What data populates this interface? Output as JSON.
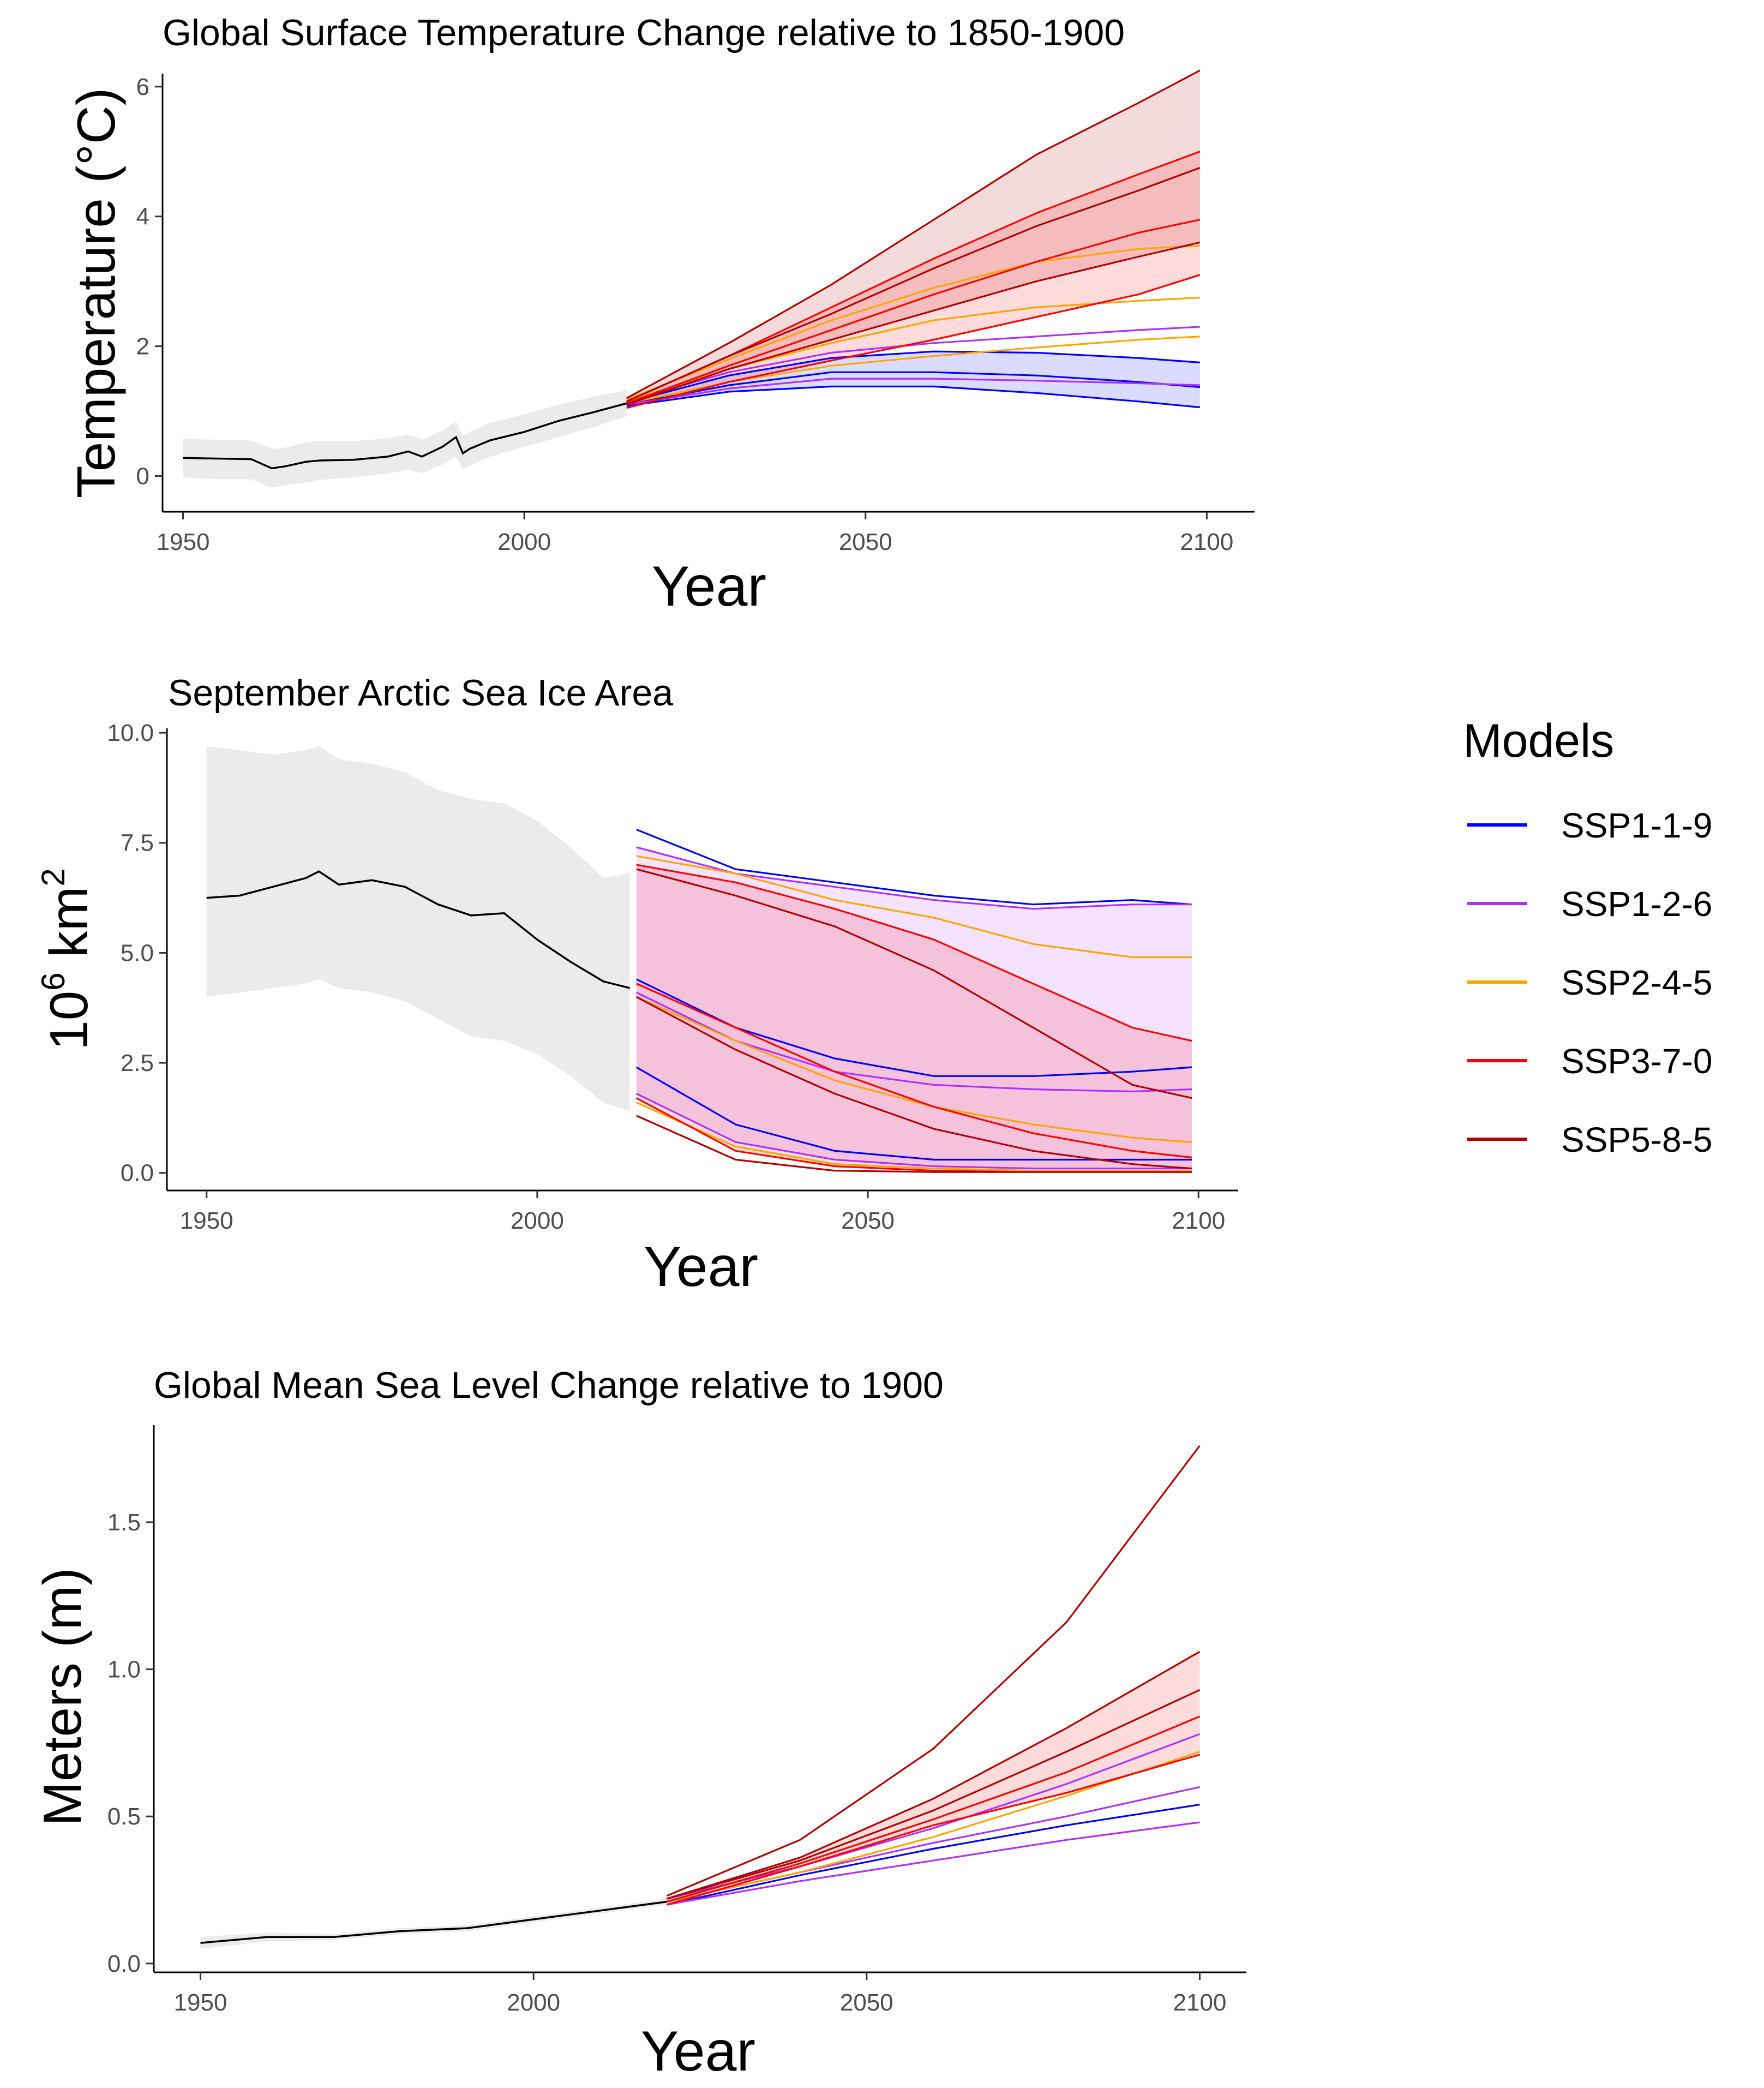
{
  "legend": {
    "title": "Models",
    "items": [
      {
        "label": "SSP1-1-9",
        "color": "#0000ff"
      },
      {
        "label": "SSP1-2-6",
        "color": "#b030ff"
      },
      {
        "label": "SSP2-4-5",
        "color": "#ffa500"
      },
      {
        "label": "SSP3-7-0",
        "color": "#ff0000"
      },
      {
        "label": "SSP5-8-5",
        "color": "#b00000"
      }
    ]
  },
  "chart_data": [
    {
      "type": "line",
      "title": "Global Surface Temperature Change relative to 1850-1900",
      "xlabel": "Year",
      "ylabel": "Temperature (°C)",
      "xlim": [
        1947,
        2107
      ],
      "ylim": [
        -0.55,
        6.2
      ],
      "xticks": [
        1950,
        2000,
        2050,
        2100
      ],
      "yticks": [
        0,
        2,
        4,
        6
      ],
      "historical": {
        "color": "#000000",
        "x": [
          1950,
          1955,
          1960,
          1963,
          1965,
          1968,
          1970,
          1975,
          1980,
          1983,
          1985,
          1988,
          1990,
          1991,
          1992,
          1995,
          2000,
          2005,
          2010,
          2015
        ],
        "y": [
          0.28,
          0.27,
          0.26,
          0.12,
          0.15,
          0.22,
          0.24,
          0.25,
          0.3,
          0.38,
          0.3,
          0.45,
          0.6,
          0.35,
          0.42,
          0.55,
          0.68,
          0.85,
          0.98,
          1.12
        ],
        "band_lower": [
          -0.02,
          -0.05,
          -0.05,
          -0.18,
          -0.14,
          -0.1,
          -0.06,
          -0.02,
          0.04,
          0.1,
          0.04,
          0.18,
          0.3,
          0.1,
          0.16,
          0.3,
          0.45,
          0.6,
          0.75,
          0.92
        ],
        "band_upper": [
          0.58,
          0.56,
          0.55,
          0.42,
          0.44,
          0.52,
          0.54,
          0.54,
          0.58,
          0.64,
          0.56,
          0.7,
          0.85,
          0.62,
          0.68,
          0.82,
          0.95,
          1.1,
          1.22,
          1.32
        ]
      },
      "projection_x": [
        2015,
        2030,
        2045,
        2060,
        2075,
        2090,
        2099
      ],
      "projections": [
        {
          "scenario": "SSP1-1-9",
          "values": [
            1.08,
            1.3,
            1.38,
            1.38,
            1.28,
            1.15,
            1.06
          ]
        },
        {
          "scenario": "SSP1-1-9",
          "values": [
            1.1,
            1.4,
            1.6,
            1.6,
            1.55,
            1.45,
            1.37
          ]
        },
        {
          "scenario": "SSP1-1-9",
          "values": [
            1.13,
            1.55,
            1.82,
            1.92,
            1.9,
            1.82,
            1.75
          ]
        },
        {
          "scenario": "SSP1-2-6",
          "values": [
            1.1,
            1.35,
            1.5,
            1.5,
            1.47,
            1.43,
            1.4
          ]
        },
        {
          "scenario": "SSP1-2-6",
          "values": [
            1.15,
            1.6,
            1.9,
            2.05,
            2.15,
            2.25,
            2.3
          ]
        },
        {
          "scenario": "SSP2-4-5",
          "values": [
            1.12,
            1.45,
            1.7,
            1.85,
            1.98,
            2.1,
            2.15
          ]
        },
        {
          "scenario": "SSP2-4-5",
          "values": [
            1.15,
            1.65,
            2.05,
            2.4,
            2.6,
            2.7,
            2.75
          ]
        },
        {
          "scenario": "SSP2-4-5",
          "values": [
            1.18,
            1.8,
            2.4,
            2.9,
            3.3,
            3.5,
            3.55
          ]
        },
        {
          "scenario": "SSP3-7-0",
          "values": [
            1.05,
            1.45,
            1.78,
            2.1,
            2.45,
            2.8,
            3.1
          ]
        },
        {
          "scenario": "SSP3-7-0",
          "values": [
            1.12,
            1.7,
            2.25,
            2.8,
            3.3,
            3.75,
            3.95
          ]
        },
        {
          "scenario": "SSP3-7-0",
          "values": [
            1.15,
            1.85,
            2.6,
            3.35,
            4.05,
            4.65,
            5.0
          ]
        },
        {
          "scenario": "SSP5-8-5",
          "values": [
            1.1,
            1.65,
            2.1,
            2.55,
            3.0,
            3.38,
            3.6
          ]
        },
        {
          "scenario": "SSP5-8-5",
          "values": [
            1.15,
            1.85,
            2.5,
            3.2,
            3.85,
            4.4,
            4.75
          ]
        },
        {
          "scenario": "SSP5-8-5",
          "values": [
            1.2,
            2.05,
            2.95,
            3.95,
            4.95,
            5.75,
            6.25
          ]
        }
      ],
      "bands": [
        {
          "scenario": "SSP1-1-9",
          "lower": [
            1.08,
            1.3,
            1.38,
            1.38,
            1.28,
            1.15,
            1.06
          ],
          "upper": [
            1.13,
            1.55,
            1.82,
            1.92,
            1.9,
            1.82,
            1.75
          ]
        },
        {
          "scenario": "SSP3-7-0",
          "lower": [
            1.05,
            1.45,
            1.78,
            2.1,
            2.45,
            2.8,
            3.1
          ],
          "upper": [
            1.15,
            1.85,
            2.6,
            3.35,
            4.05,
            4.65,
            5.0
          ]
        },
        {
          "scenario": "SSP5-8-5",
          "lower": [
            1.1,
            1.65,
            2.1,
            2.55,
            3.0,
            3.38,
            3.6
          ],
          "upper": [
            1.2,
            2.05,
            2.95,
            3.95,
            4.95,
            5.75,
            6.25
          ]
        }
      ]
    },
    {
      "type": "line",
      "title": "September Arctic Sea Ice Area",
      "xlabel": "Year",
      "ylabel": "10⁶ km²",
      "xlim": [
        1944,
        2106
      ],
      "ylim": [
        -0.4,
        10.1
      ],
      "xticks": [
        1950,
        2000,
        2050,
        2100
      ],
      "yticks": [
        0.0,
        2.5,
        5.0,
        7.5,
        10.0
      ],
      "ytick_labels": [
        "0.0",
        "2.5",
        "5.0",
        "7.5",
        "10.0"
      ],
      "historical": {
        "color": "#000000",
        "x": [
          1950,
          1955,
          1960,
          1965,
          1967,
          1970,
          1975,
          1980,
          1985,
          1990,
          1995,
          2000,
          2005,
          2010,
          2014
        ],
        "y": [
          6.25,
          6.3,
          6.5,
          6.7,
          6.85,
          6.55,
          6.65,
          6.5,
          6.1,
          5.85,
          5.9,
          5.3,
          4.8,
          4.35,
          4.2
        ],
        "band_lower": [
          4.0,
          4.1,
          4.2,
          4.3,
          4.4,
          4.2,
          4.1,
          3.9,
          3.5,
          3.1,
          3.0,
          2.7,
          2.2,
          1.6,
          1.4
        ],
        "band_upper": [
          9.7,
          9.6,
          9.5,
          9.6,
          9.7,
          9.4,
          9.3,
          9.1,
          8.7,
          8.5,
          8.4,
          8.0,
          7.4,
          6.7,
          6.8
        ]
      },
      "projection_x": [
        2015,
        2030,
        2045,
        2060,
        2075,
        2090,
        2099
      ],
      "projections": [
        {
          "scenario": "SSP1-1-9",
          "values": [
            7.8,
            6.9,
            6.6,
            6.3,
            6.1,
            6.2,
            6.1
          ]
        },
        {
          "scenario": "SSP1-1-9",
          "values": [
            4.4,
            3.3,
            2.6,
            2.2,
            2.2,
            2.3,
            2.4
          ]
        },
        {
          "scenario": "SSP1-1-9",
          "values": [
            2.4,
            1.1,
            0.5,
            0.3,
            0.3,
            0.3,
            0.3
          ]
        },
        {
          "scenario": "SSP1-2-6",
          "values": [
            7.4,
            6.8,
            6.5,
            6.2,
            6.0,
            6.1,
            6.1
          ]
        },
        {
          "scenario": "SSP1-2-6",
          "values": [
            4.1,
            3.0,
            2.3,
            2.0,
            1.9,
            1.85,
            1.9
          ]
        },
        {
          "scenario": "SSP1-2-6",
          "values": [
            1.8,
            0.7,
            0.3,
            0.15,
            0.1,
            0.1,
            0.1
          ]
        },
        {
          "scenario": "SSP2-4-5",
          "values": [
            7.2,
            6.8,
            6.2,
            5.8,
            5.2,
            4.9,
            4.9
          ]
        },
        {
          "scenario": "SSP2-4-5",
          "values": [
            4.0,
            3.0,
            2.1,
            1.5,
            1.1,
            0.8,
            0.7
          ]
        },
        {
          "scenario": "SSP2-4-5",
          "values": [
            1.6,
            0.6,
            0.2,
            0.1,
            0.05,
            0.05,
            0.05
          ]
        },
        {
          "scenario": "SSP3-7-0",
          "values": [
            7.0,
            6.6,
            6.0,
            5.3,
            4.3,
            3.3,
            3.0
          ]
        },
        {
          "scenario": "SSP3-7-0",
          "values": [
            4.3,
            3.3,
            2.3,
            1.5,
            0.9,
            0.5,
            0.35
          ]
        },
        {
          "scenario": "SSP3-7-0",
          "values": [
            1.7,
            0.5,
            0.15,
            0.05,
            0.02,
            0.02,
            0.02
          ]
        },
        {
          "scenario": "SSP5-8-5",
          "values": [
            6.9,
            6.3,
            5.6,
            4.6,
            3.3,
            2.0,
            1.7
          ]
        },
        {
          "scenario": "SSP5-8-5",
          "values": [
            4.0,
            2.8,
            1.8,
            1.0,
            0.5,
            0.2,
            0.1
          ]
        },
        {
          "scenario": "SSP5-8-5",
          "values": [
            1.3,
            0.3,
            0.05,
            0.02,
            0.02,
            0.02,
            0.02
          ]
        }
      ],
      "bands": [
        {
          "scenario": "SSP1-2-6",
          "lower": [
            1.8,
            0.7,
            0.3,
            0.15,
            0.1,
            0.1,
            0.1
          ],
          "upper": [
            7.4,
            6.8,
            6.5,
            6.2,
            6.0,
            6.1,
            6.1
          ]
        },
        {
          "scenario": "SSP3-7-0",
          "lower": [
            1.7,
            0.5,
            0.15,
            0.05,
            0.02,
            0.02,
            0.02
          ],
          "upper": [
            7.0,
            6.6,
            6.0,
            5.3,
            4.3,
            3.3,
            3.0
          ]
        }
      ]
    },
    {
      "type": "line",
      "title": "Global Mean Sea Level Change relative to 1900",
      "xlabel": "Year",
      "ylabel": "Meters (m)",
      "xlim": [
        1943,
        2107
      ],
      "ylim": [
        -0.03,
        1.83
      ],
      "xticks": [
        1950,
        2000,
        2050,
        2100
      ],
      "yticks": [
        0.0,
        0.5,
        1.0,
        1.5
      ],
      "ytick_labels": [
        "0.0",
        "0.5",
        "1.0",
        "1.5"
      ],
      "historical": {
        "color": "#000000",
        "x": [
          1950,
          1960,
          1970,
          1980,
          1990,
          2000,
          2010,
          2020
        ],
        "y": [
          0.07,
          0.09,
          0.09,
          0.11,
          0.12,
          0.15,
          0.18,
          0.21
        ],
        "band_lower": [
          0.05,
          0.075,
          0.08,
          0.1,
          0.11,
          0.14,
          0.17,
          0.2
        ],
        "band_upper": [
          0.09,
          0.105,
          0.1,
          0.12,
          0.13,
          0.16,
          0.19,
          0.22
        ]
      },
      "projection_x": [
        2020,
        2040,
        2060,
        2080,
        2100
      ],
      "projections": [
        {
          "scenario": "SSP1-1-9",
          "values": [
            0.2,
            0.3,
            0.39,
            0.47,
            0.54
          ]
        },
        {
          "scenario": "SSP1-2-6",
          "values": [
            0.2,
            0.28,
            0.35,
            0.42,
            0.48
          ]
        },
        {
          "scenario": "SSP1-2-6",
          "values": [
            0.21,
            0.31,
            0.41,
            0.5,
            0.6
          ]
        },
        {
          "scenario": "SSP1-2-6",
          "values": [
            0.22,
            0.33,
            0.46,
            0.61,
            0.78
          ]
        },
        {
          "scenario": "SSP2-4-5",
          "values": [
            0.21,
            0.31,
            0.43,
            0.57,
            0.72
          ]
        },
        {
          "scenario": "SSP3-7-0",
          "values": [
            0.2,
            0.33,
            0.47,
            0.58,
            0.71
          ]
        },
        {
          "scenario": "SSP3-7-0",
          "values": [
            0.21,
            0.34,
            0.49,
            0.65,
            0.84
          ]
        },
        {
          "scenario": "SSP5-8-5",
          "values": [
            0.22,
            0.35,
            0.52,
            0.72,
            0.93
          ]
        },
        {
          "scenario": "SSP5-8-5",
          "values": [
            0.22,
            0.36,
            0.56,
            0.8,
            1.06
          ]
        },
        {
          "scenario": "SSP5-8-5",
          "values": [
            0.23,
            0.42,
            0.73,
            1.16,
            1.76
          ]
        }
      ],
      "bands": [
        {
          "scenario": "SSP3-7-0",
          "lower": [
            0.2,
            0.33,
            0.47,
            0.58,
            0.71
          ],
          "upper": [
            0.22,
            0.36,
            0.56,
            0.8,
            1.06
          ]
        }
      ]
    }
  ]
}
